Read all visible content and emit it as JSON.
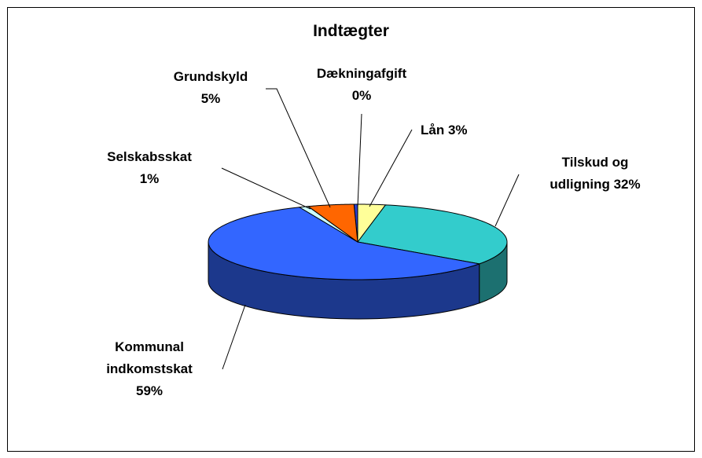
{
  "chart_data": {
    "type": "pie3d",
    "title": "Indtægter",
    "categories": [
      "Dækningafgift",
      "Lån",
      "Tilskud og udligning",
      "Kommunal indkomstskat",
      "Selskabsskat",
      "Grundskyld"
    ],
    "values": [
      0.4,
      3,
      32,
      59,
      1,
      5
    ],
    "value_labels": [
      "0%",
      "3%",
      "32%",
      "59%",
      "1%",
      "5%"
    ],
    "colors": [
      "#2a3fd0",
      "#ffff99",
      "#33cccc",
      "#3366ff",
      "#ccffff",
      "#ff6600"
    ]
  }
}
